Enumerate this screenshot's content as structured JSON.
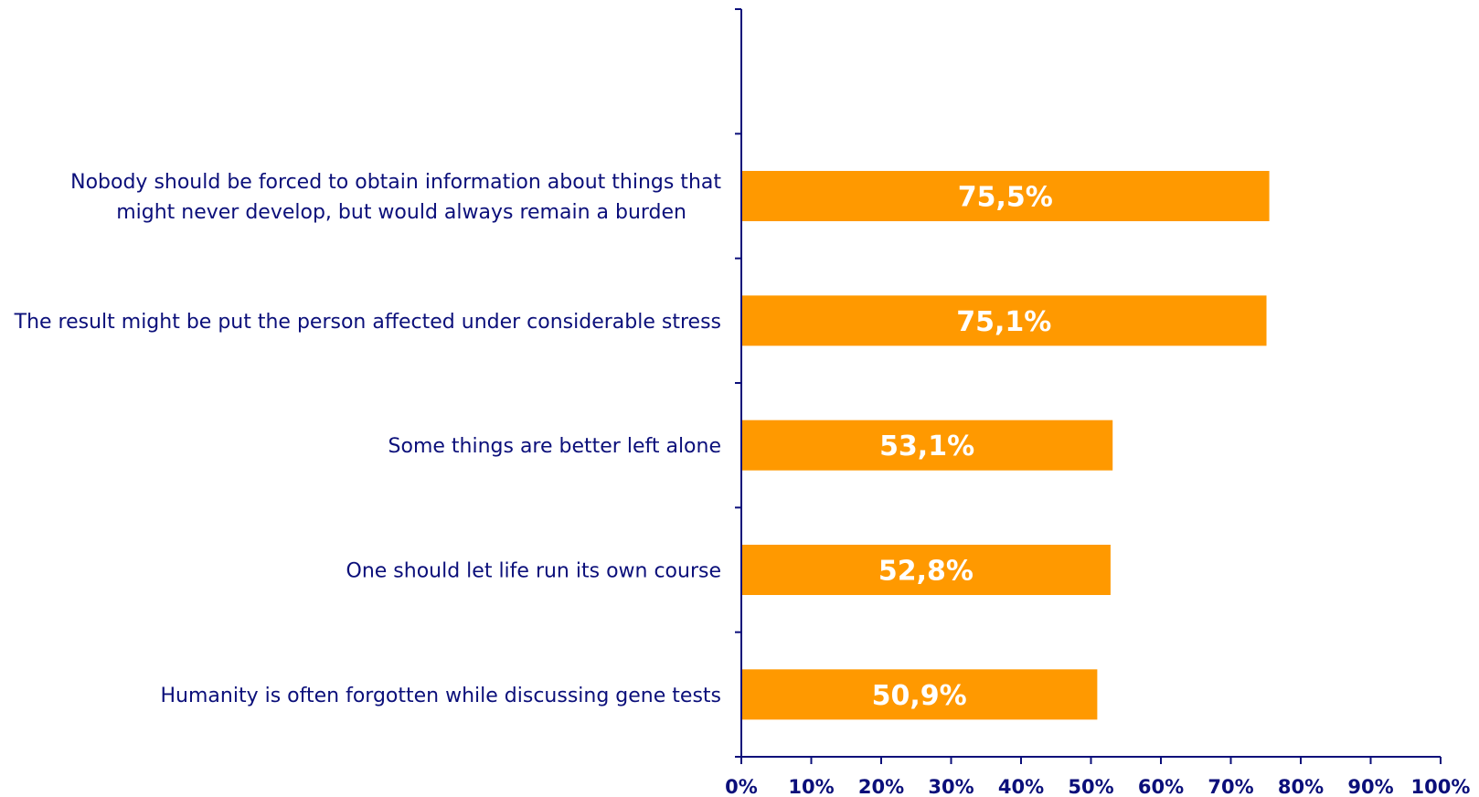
{
  "chart_data": {
    "type": "bar",
    "orientation": "horizontal",
    "categories": [
      [
        "Nobody should be forced to obtain information about things that",
        "might never develop, but would always remain a burden"
      ],
      [
        "The result might be put the person affected under considerable stress"
      ],
      [
        "Some things are better left alone"
      ],
      [
        "One should let life run its own course"
      ],
      [
        "Humanity is often forgotten while discussing gene tests"
      ]
    ],
    "values": [
      75.5,
      75.1,
      53.1,
      52.8,
      50.9
    ],
    "value_labels": [
      "75,5%",
      "75,1%",
      "53,1%",
      "52,8%",
      "50,9%"
    ],
    "empty_slots_before": 1,
    "x_ticks": [
      0,
      10,
      20,
      30,
      40,
      50,
      60,
      70,
      80,
      90,
      100
    ],
    "x_tick_labels": [
      "0%",
      "10%",
      "20%",
      "30%",
      "40%",
      "50%",
      "60%",
      "70%",
      "80%",
      "90%",
      "100%"
    ],
    "xlim": [
      0,
      100
    ],
    "grid": false,
    "legend": "none",
    "title": "",
    "xlabel": "",
    "ylabel": ""
  },
  "colors": {
    "bar": "#ff9900",
    "axis": "#0b0f7a",
    "text": "#0b0f7a",
    "data_label": "#ffffff"
  }
}
